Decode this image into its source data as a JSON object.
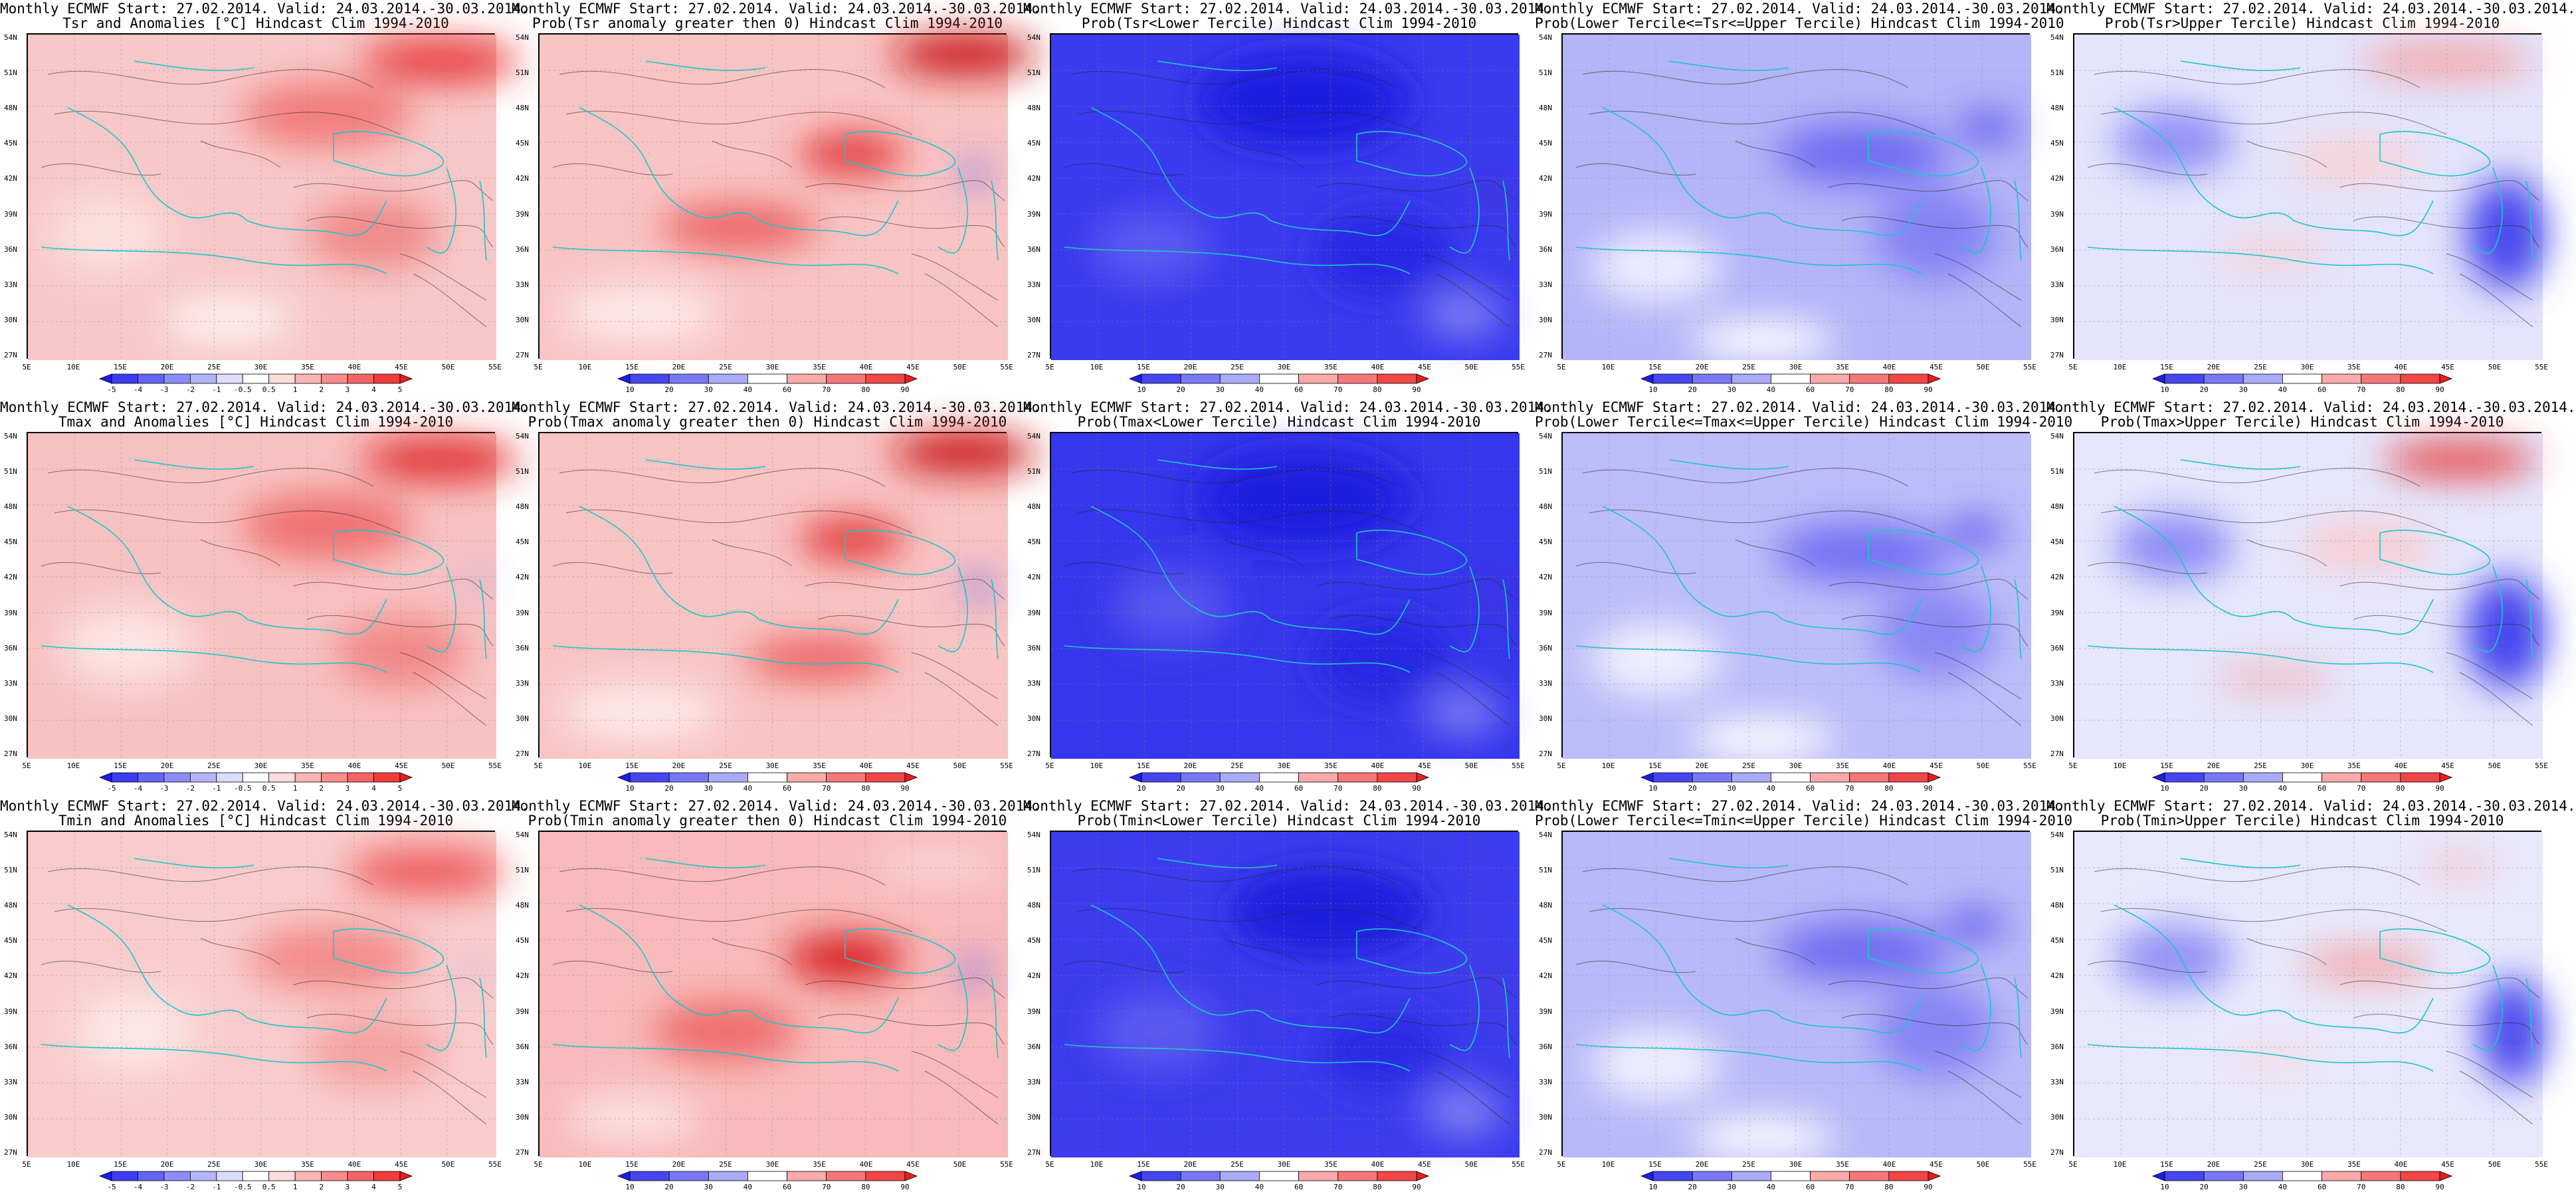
{
  "lat_labels": [
    "54N",
    "51N",
    "48N",
    "45N",
    "42N",
    "39N",
    "36N",
    "33N",
    "30N",
    "27N"
  ],
  "lon_labels": [
    "5E",
    "10E",
    "15E",
    "20E",
    "25E",
    "30E",
    "35E",
    "40E",
    "45E",
    "50E",
    "55E"
  ],
  "colorbars": {
    "anom": {
      "labels": [
        "-5",
        "-4",
        "-3",
        "-2",
        "-1",
        "-0.5",
        "0.5",
        "1",
        "2",
        "3",
        "4",
        "5"
      ],
      "colors": [
        "#1e1ee6",
        "#3c3cf0",
        "#6464f5",
        "#8c8cfa",
        "#b4b4fc",
        "#dcdcfe",
        "#ffffff",
        "#fedcdc",
        "#fcb4b4",
        "#fa8c8c",
        "#f56464",
        "#f03c3c",
        "#e61e1e"
      ]
    },
    "prob": {
      "labels": [
        "10",
        "20",
        "30",
        "40",
        "60",
        "70",
        "80",
        "90"
      ],
      "colors": [
        "#1e1ee6",
        "#4646f0",
        "#7878f5",
        "#aaaafa",
        "#ffffff",
        "#faaaaa",
        "#f57878",
        "#f04646",
        "#e61e1e"
      ]
    }
  },
  "panels": [
    {
      "id": "tsr-anom",
      "line1": "Monthly ECMWF Start: 27.02.2014. Valid: 24.03.2014.-30.03.2014.",
      "line2": "Tsr and Anomalies [°C] Hindcast Clim 1994-2010",
      "scheme": "anom",
      "base": "#f8c8c8",
      "blobs": [
        [
          "#e83030",
          620,
          40,
          240,
          60
        ],
        [
          "#f27a7a",
          450,
          120,
          260,
          100
        ],
        [
          "#fbe0e0",
          120,
          300,
          180,
          120
        ],
        [
          "#f08a8a",
          520,
          300,
          200,
          110
        ],
        [
          "#fdf1f1",
          300,
          430,
          200,
          70
        ]
      ]
    },
    {
      "id": "tsr-pos",
      "line1": "Monthly ECMWF Start: 27.02.2014. Valid: 24.03.2014.-30.03.2014.",
      "line2": "Prob(Tsr anomaly greater then 0) Hindcast Clim 1994-2010",
      "scheme": "prob",
      "base": "#f9c4c4",
      "blobs": [
        [
          "#c81414",
          640,
          30,
          220,
          60
        ],
        [
          "#e23030",
          470,
          180,
          160,
          60
        ],
        [
          "#ec6060",
          300,
          290,
          240,
          70
        ],
        [
          "#fde8e8",
          150,
          420,
          240,
          90
        ],
        [
          "#4646f0",
          655,
          210,
          25,
          50
        ]
      ]
    },
    {
      "id": "tsr-lower",
      "line1": "Monthly ECMWF Start: 27.02.2014. Valid: 24.03.2014.-30.03.2014.",
      "line2": "Prob(Tsr<Lower Tercile) Hindcast Clim 1994-2010",
      "scheme": "prob",
      "base": "#3a3aee",
      "blobs": [
        [
          "#1e1ee0",
          380,
          100,
          320,
          140
        ],
        [
          "#5a5af2",
          150,
          320,
          180,
          110
        ],
        [
          "#2828e4",
          500,
          330,
          200,
          120
        ],
        [
          "#8080f6",
          620,
          420,
          120,
          70
        ],
        [
          "#e84848",
          660,
          240,
          10,
          18
        ]
      ]
    },
    {
      "id": "tsr-middle",
      "line1": "Monthly ECMWF Start: 27.02.2014. Valid: 24.03.2014.-30.03.2014.",
      "line2": "Prob(Lower Tercile<=Tsr<=Upper Tercile) Hindcast Clim 1994-2010",
      "scheme": "prob",
      "base": "#b4b4f8",
      "blobs": [
        [
          "#6a6af2",
          450,
          180,
          260,
          90
        ],
        [
          "#ececfe",
          140,
          350,
          200,
          110
        ],
        [
          "#8282f5",
          560,
          300,
          180,
          140
        ],
        [
          "#ffffff",
          300,
          460,
          220,
          60
        ],
        [
          "#4a4aee",
          640,
          140,
          90,
          40
        ]
      ]
    },
    {
      "id": "tsr-upper",
      "line1": "Monthly ECMWF Start: 27.02.2014. Valid: 24.03.2014.-30.03.2014.",
      "line2": "Prob(Tsr>Upper Tercile) Hindcast Clim 1994-2010",
      "scheme": "prob",
      "base": "#e4e4fc",
      "blobs": [
        [
          "#f6a0a0",
          560,
          40,
          260,
          50
        ],
        [
          "#fbd0d0",
          420,
          190,
          200,
          60
        ],
        [
          "#9090f6",
          150,
          160,
          180,
          100
        ],
        [
          "#4848ee",
          650,
          300,
          120,
          170
        ],
        [
          "#fad0d0",
          300,
          330,
          180,
          40
        ]
      ]
    },
    {
      "id": "tmax-anom",
      "line1": "Monthly ECMWF Start: 27.02.2014. Valid: 24.03.2014.-30.03.2014.",
      "line2": "Tmax and Anomalies [°C] Hindcast Clim 1994-2010",
      "scheme": "anom",
      "base": "#f8c2c2",
      "blobs": [
        [
          "#e02828",
          620,
          40,
          240,
          60
        ],
        [
          "#f07070",
          450,
          140,
          260,
          100
        ],
        [
          "#fce4e4",
          150,
          320,
          200,
          120
        ],
        [
          "#f28888",
          560,
          330,
          200,
          110
        ],
        [
          "#9090f6",
          680,
          220,
          20,
          40
        ]
      ]
    },
    {
      "id": "tmax-pos",
      "line1": "Monthly ECMWF Start: 27.02.2014. Valid: 24.03.2014.-30.03.2014.",
      "line2": "Prob(Tmax anomaly greater then 0) Hindcast Clim 1994-2010",
      "scheme": "prob",
      "base": "#f9c4c4",
      "blobs": [
        [
          "#c81414",
          640,
          30,
          220,
          60
        ],
        [
          "#e23030",
          470,
          160,
          160,
          60
        ],
        [
          "#ec5a5a",
          420,
          340,
          220,
          60
        ],
        [
          "#fde8e8",
          150,
          420,
          240,
          90
        ],
        [
          "#4646f0",
          660,
          230,
          25,
          50
        ]
      ]
    },
    {
      "id": "tmax-lower",
      "line1": "Monthly ECMWF Start: 27.02.2014. Valid: 24.03.2014.-30.03.2014.",
      "line2": "Prob(Tmax<Lower Tercile) Hindcast Clim 1994-2010",
      "scheme": "prob",
      "base": "#3636ec",
      "blobs": [
        [
          "#1c1cde",
          380,
          100,
          320,
          140
        ],
        [
          "#5656f0",
          180,
          260,
          180,
          110
        ],
        [
          "#2626e2",
          500,
          340,
          200,
          120
        ],
        [
          "#7a7af6",
          620,
          420,
          120,
          70
        ],
        [
          "#e84848",
          660,
          240,
          10,
          18
        ]
      ]
    },
    {
      "id": "tmax-middle",
      "line1": "Monthly ECMWF Start: 27.02.2014. Valid: 24.03.2014.-30.03.2014.",
      "line2": "Prob(Lower Tercile<=Tmax<=Upper Tercile) Hindcast Clim 1994-2010",
      "scheme": "prob",
      "base": "#bcbcf9",
      "blobs": [
        [
          "#7070f3",
          450,
          180,
          260,
          90
        ],
        [
          "#f0f0fe",
          140,
          340,
          200,
          110
        ],
        [
          "#8888f5",
          560,
          300,
          180,
          140
        ],
        [
          "#ffffff",
          300,
          460,
          220,
          60
        ],
        [
          "#4e4eee",
          620,
          150,
          90,
          40
        ]
      ]
    },
    {
      "id": "tmax-upper",
      "line1": "Monthly ECMWF Start: 27.02.2014. Valid: 24.03.2014.-30.03.2014.",
      "line2": "Prob(Tmax>Upper Tercile) Hindcast Clim 1994-2010",
      "scheme": "prob",
      "base": "#e6e6fc",
      "blobs": [
        [
          "#e63c3c",
          580,
          40,
          230,
          50
        ],
        [
          "#fbc8c8",
          440,
          170,
          200,
          60
        ],
        [
          "#8c8cf6",
          150,
          170,
          180,
          100
        ],
        [
          "#4444ee",
          650,
          300,
          120,
          170
        ],
        [
          "#f7a8a8",
          300,
          370,
          180,
          30
        ]
      ]
    },
    {
      "id": "tmin-anom",
      "line1": "Monthly ECMWF Start: 27.02.2014. Valid: 24.03.2014.-30.03.2014.",
      "line2": "Tmin and Anomalies [°C] Hindcast Clim 1994-2010",
      "scheme": "anom",
      "base": "#f9cccc",
      "blobs": [
        [
          "#ee5a5a",
          600,
          60,
          240,
          70
        ],
        [
          "#f38a8a",
          460,
          190,
          260,
          100
        ],
        [
          "#fce6e6",
          160,
          300,
          180,
          120
        ],
        [
          "#f5a0a0",
          520,
          330,
          200,
          110
        ],
        [
          "#9090f6",
          670,
          210,
          18,
          30
        ]
      ]
    },
    {
      "id": "tmin-pos",
      "line1": "Monthly ECMWF Start: 27.02.2014. Valid: 24.03.2014.-30.03.2014.",
      "line2": "Prob(Tmin anomaly greater then 0) Hindcast Clim 1994-2010",
      "scheme": "prob",
      "base": "#f8baba",
      "blobs": [
        [
          "#d81e1e",
          460,
          190,
          180,
          70
        ],
        [
          "#ee6a6a",
          280,
          300,
          220,
          90
        ],
        [
          "#fbd6d6",
          600,
          50,
          200,
          50
        ],
        [
          "#fce4e4",
          140,
          430,
          200,
          70
        ],
        [
          "#4646f0",
          655,
          210,
          25,
          50
        ]
      ]
    },
    {
      "id": "tmin-lower",
      "line1": "Monthly ECMWF Start: 27.02.2014. Valid: 24.03.2014.-30.03.2014.",
      "line2": "Prob(Tmin<Lower Tercile) Hindcast Clim 1994-2010",
      "scheme": "prob",
      "base": "#3c3cee",
      "blobs": [
        [
          "#1a1adc",
          420,
          120,
          300,
          130
        ],
        [
          "#5c5cf2",
          160,
          300,
          180,
          110
        ],
        [
          "#2a2ae4",
          500,
          330,
          200,
          120
        ],
        [
          "#8484f6",
          620,
          420,
          120,
          70
        ],
        [
          "#e84848",
          660,
          230,
          10,
          18
        ]
      ]
    },
    {
      "id": "tmin-middle",
      "line1": "Monthly ECMWF Start: 27.02.2014. Valid: 24.03.2014.-30.03.2014.",
      "line2": "Prob(Lower Tercile<=Tmin<=Upper Tercile) Hindcast Clim 1994-2010",
      "scheme": "prob",
      "base": "#b8b8f8",
      "blobs": [
        [
          "#6c6cf2",
          450,
          180,
          260,
          90
        ],
        [
          "#eeeefe",
          140,
          350,
          200,
          110
        ],
        [
          "#8484f5",
          560,
          300,
          180,
          140
        ],
        [
          "#ffffff",
          300,
          460,
          220,
          60
        ],
        [
          "#4c4cee",
          620,
          140,
          90,
          40
        ]
      ]
    },
    {
      "id": "tmin-upper",
      "line1": "Monthly ECMWF Start: 27.02.2014. Valid: 24.03.2014.-30.03.2014.",
      "line2": "Prob(Tmin>Upper Tercile) Hindcast Clim 1994-2010",
      "scheme": "prob",
      "base": "#e8e8fc",
      "blobs": [
        [
          "#f4a4a4",
          440,
          200,
          200,
          50
        ],
        [
          "#fbd6d6",
          300,
          340,
          150,
          30
        ],
        [
          "#9292f6",
          150,
          190,
          180,
          100
        ],
        [
          "#4a4aee",
          660,
          300,
          100,
          160
        ],
        [
          "#f8c0c0",
          580,
          50,
          120,
          30
        ]
      ]
    }
  ]
}
